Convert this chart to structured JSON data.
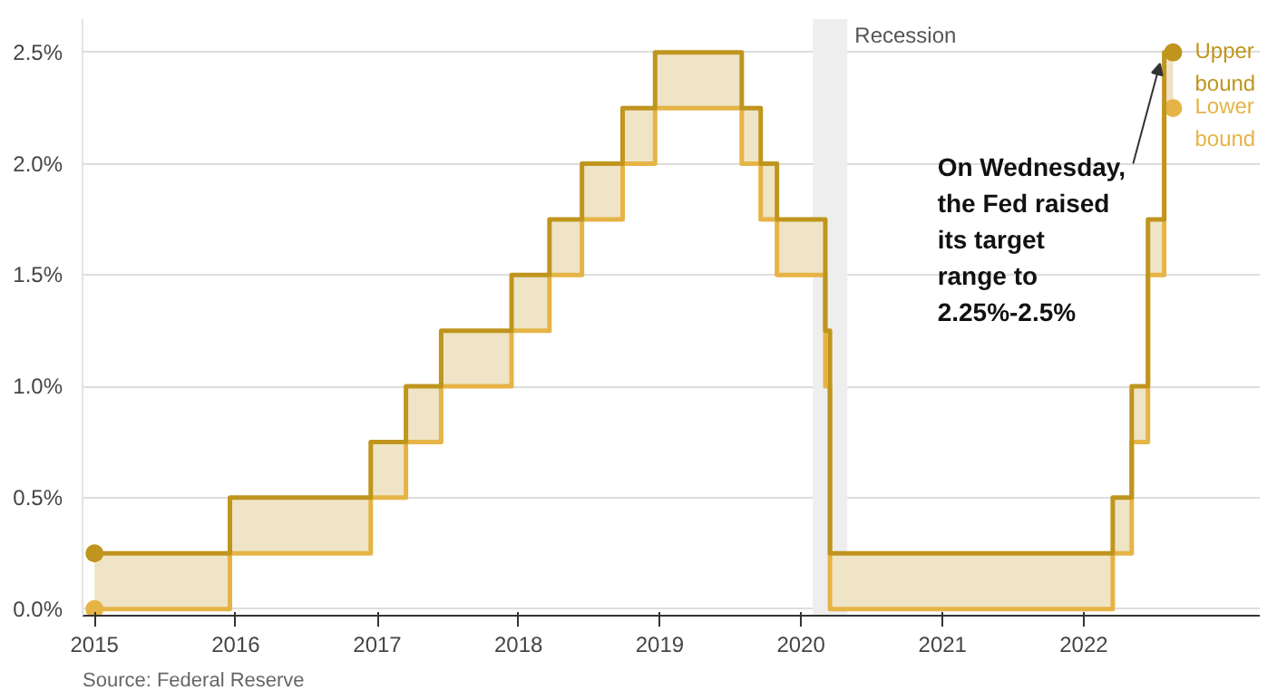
{
  "chart_data": {
    "type": "step",
    "x": [
      "2015-01-01",
      "2015-12-17",
      "2016-12-15",
      "2017-03-16",
      "2017-06-15",
      "2017-12-14",
      "2018-03-22",
      "2018-06-14",
      "2018-09-27",
      "2018-12-20",
      "2019-08-01",
      "2019-09-19",
      "2019-10-31",
      "2020-03-04",
      "2020-03-16",
      "2022-03-17",
      "2022-05-05",
      "2022-06-16",
      "2022-07-28",
      "2022-08-20"
    ],
    "series": [
      {
        "name": "Upper bound",
        "color": "#c0951e",
        "values": [
          0.25,
          0.5,
          0.75,
          1,
          1.25,
          1.5,
          1.75,
          2,
          2.25,
          2.5,
          2.25,
          2,
          1.75,
          1.25,
          0.25,
          0.5,
          1,
          1.75,
          2.5,
          2.5
        ],
        "lower": [
          0,
          0.25,
          0.5,
          0.75,
          1,
          1.25,
          1.5,
          1.75,
          2,
          2.25,
          2,
          1.75,
          1.5,
          1,
          0,
          0.25,
          0.75,
          1.5,
          2.25,
          2.25
        ],
        "upper": [
          0.25,
          0.5,
          0.75,
          1,
          1.25,
          1.5,
          1.75,
          2,
          2.25,
          2.5,
          2.25,
          2,
          1.75,
          1.25,
          0.25,
          0.5,
          1,
          1.75,
          2.5,
          2.5
        ]
      },
      {
        "name": "Lower bound",
        "color": "#e6b446",
        "values": [
          0,
          0.25,
          0.5,
          0.75,
          1,
          1.25,
          1.5,
          1.75,
          2,
          2.25,
          2,
          1.75,
          1.5,
          1,
          0,
          0.25,
          0.75,
          1.5,
          2.25,
          2.25
        ]
      },
      {
        "type": "scatter",
        "marker": "circle",
        "color": "#c0951e",
        "x": [
          "2015-01-01",
          "2022-08-20"
        ],
        "values": [
          0.25,
          2.5
        ]
      },
      {
        "type": "scatter",
        "marker": "circle",
        "color": "#e6b446",
        "x": [
          "2015-01-01",
          "2022-08-20"
        ],
        "values": [
          0,
          2.25
        ]
      }
    ],
    "xlim": [
      "2014-12-01",
      "2023-04-01"
    ],
    "xticks": [
      "2015",
      "2016",
      "2017",
      "2018",
      "2019",
      "2020",
      "2021",
      "2022"
    ],
    "ylim": [
      -0.03,
      2.65
    ],
    "yticks": [
      {
        "value": 0,
        "label": "0.0%"
      },
      {
        "value": 0.5,
        "label": "0.5%"
      },
      {
        "value": 1,
        "label": "1.0%"
      },
      {
        "value": 1.5,
        "label": "1.5%"
      },
      {
        "value": 2,
        "label": "2.0%"
      },
      {
        "value": 2.5,
        "label": "2.5%"
      }
    ],
    "bands": [
      {
        "axis": "x",
        "from": "2020-02-01",
        "to": "2020-04-30",
        "label": "Recession",
        "color": "#eeeeee"
      }
    ],
    "annotations": [
      {
        "text": "On Wednesday,\nthe Fed raised\nits target\nrange to\n2.25%-2.5%",
        "x": "2022-07-28",
        "y": 2.5
      },
      "Source: Federal Reserve"
    ],
    "grid": "y",
    "line_style": "solid"
  }
}
